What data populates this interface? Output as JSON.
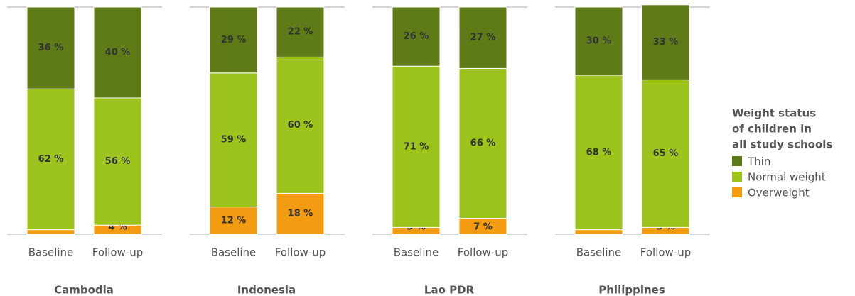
{
  "legend": {
    "title_lines": [
      "Weight status",
      "of children in",
      "all study schools"
    ],
    "items": [
      {
        "name": "Thin",
        "color": "#5f7b18"
      },
      {
        "name": "Normal weight",
        "color": "#9dc31d"
      },
      {
        "name": "Overweight",
        "color": "#f39c12"
      }
    ]
  },
  "chart_data": [
    {
      "type": "bar",
      "stacked": true,
      "title": "Cambodia",
      "categories": [
        "Baseline",
        "Follow-up"
      ],
      "ylim": [
        0,
        100
      ],
      "series": [
        {
          "values": [
            36,
            40
          ],
          "value_labels": [
            "36 %",
            "40 %"
          ]
        },
        {
          "values": [
            62,
            56
          ],
          "value_labels": [
            "62 %",
            "56 %"
          ]
        },
        {
          "values": [
            2,
            4
          ],
          "value_labels": [
            "2 %",
            "4 %"
          ]
        }
      ]
    },
    {
      "type": "bar",
      "stacked": true,
      "title": "Indonesia",
      "categories": [
        "Baseline",
        "Follow-up"
      ],
      "ylim": [
        0,
        100
      ],
      "series": [
        {
          "values": [
            29,
            22
          ],
          "value_labels": [
            "29 %",
            "22 %"
          ]
        },
        {
          "values": [
            59,
            60
          ],
          "value_labels": [
            "59 %",
            "60 %"
          ]
        },
        {
          "values": [
            12,
            18
          ],
          "value_labels": [
            "12 %",
            "18 %"
          ]
        }
      ]
    },
    {
      "type": "bar",
      "stacked": true,
      "title": "Lao PDR",
      "categories": [
        "Baseline",
        "Follow-up"
      ],
      "ylim": [
        0,
        100
      ],
      "series": [
        {
          "values": [
            26,
            27
          ],
          "value_labels": [
            "26 %",
            "27 %"
          ]
        },
        {
          "values": [
            71,
            66
          ],
          "value_labels": [
            "71 %",
            "66 %"
          ]
        },
        {
          "values": [
            3,
            7
          ],
          "value_labels": [
            "3 %",
            "7 %"
          ]
        }
      ]
    },
    {
      "type": "bar",
      "stacked": true,
      "title": "Philippines",
      "categories": [
        "Baseline",
        "Follow-up"
      ],
      "ylim": [
        0,
        100
      ],
      "series": [
        {
          "values": [
            30,
            33
          ],
          "value_labels": [
            "30 %",
            "33 %"
          ]
        },
        {
          "values": [
            68,
            65
          ],
          "value_labels": [
            "68 %",
            "65 %"
          ]
        },
        {
          "values": [
            2,
            3
          ],
          "value_labels": [
            "2 %",
            "3 %"
          ]
        }
      ]
    }
  ]
}
